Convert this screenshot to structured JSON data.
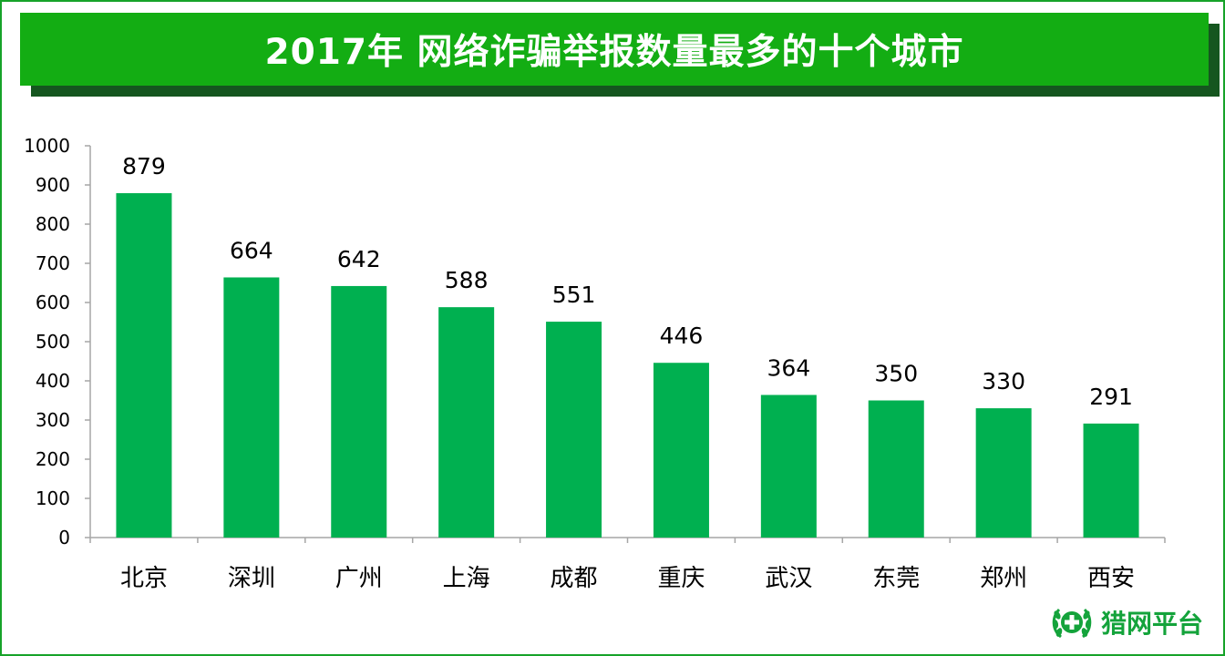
{
  "header": {
    "title": "2017年 网络诈骗举报数量最多的十个城市"
  },
  "logo": {
    "text": "猎网平台",
    "icon": "laurel-cross-emblem-icon"
  },
  "colors": {
    "bar": "#00b050",
    "title_bg": "#13ad13",
    "title_shadow": "#15561f",
    "frame": "#16a329"
  },
  "chart_data": {
    "type": "bar",
    "title": "2017年 网络诈骗举报数量最多的十个城市",
    "categories": [
      "北京",
      "深圳",
      "广州",
      "上海",
      "成都",
      "重庆",
      "武汉",
      "东莞",
      "郑州",
      "西安"
    ],
    "values": [
      879,
      664,
      642,
      588,
      551,
      446,
      364,
      350,
      330,
      291
    ],
    "value_labels": [
      "879",
      "664",
      "642",
      "588",
      "551",
      "446",
      "364",
      "350",
      "330",
      "291"
    ],
    "yticks": [
      "0",
      "100",
      "200",
      "300",
      "400",
      "500",
      "600",
      "700",
      "800",
      "900",
      "1000"
    ],
    "ylim": [
      0,
      1000
    ],
    "xlabel": "",
    "ylabel": "",
    "grid": false,
    "legend": false
  }
}
